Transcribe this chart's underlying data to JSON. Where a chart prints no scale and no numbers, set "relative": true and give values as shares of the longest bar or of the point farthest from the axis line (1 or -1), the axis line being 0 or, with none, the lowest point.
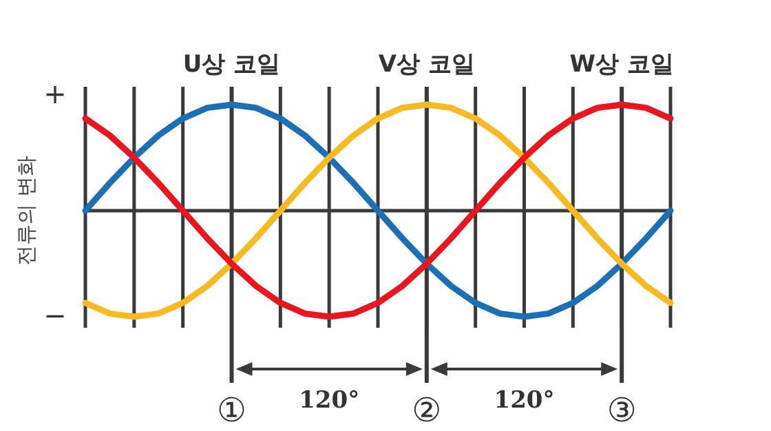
{
  "chart_data": {
    "type": "line",
    "relative": true,
    "ylabel": "전류의 변화",
    "categories": [
      null,
      null,
      null,
      null,
      null,
      null,
      null,
      null,
      null,
      null,
      null,
      null,
      null,
      null,
      null,
      null,
      null,
      null,
      null,
      null,
      null,
      null,
      null,
      null,
      null
    ],
    "grid": "x",
    "legend": false,
    "marker": "none",
    "line_style": "solid",
    "series": [
      {
        "name": "U상 코일",
        "color": "#1a6fb5",
        "values": [
          0,
          0.26,
          0.5,
          0.71,
          0.87,
          0.97,
          1,
          0.97,
          0.87,
          0.71,
          0.5,
          0.26,
          0,
          -0.26,
          -0.5,
          -0.71,
          -0.87,
          -0.97,
          -1,
          -0.97,
          -0.87,
          -0.71,
          -0.5,
          -0.26,
          0
        ]
      },
      {
        "name": "V상 코일",
        "color": "#f7b924",
        "values": [
          -0.87,
          -0.97,
          -1,
          -0.97,
          -0.87,
          -0.71,
          -0.5,
          -0.26,
          0,
          0.26,
          0.5,
          0.71,
          0.87,
          0.97,
          1,
          0.97,
          0.87,
          0.71,
          0.5,
          0.26,
          0,
          -0.26,
          -0.5,
          -0.71,
          -0.87
        ]
      },
      {
        "name": "W상 코일",
        "color": "#e8161e",
        "values": [
          0.87,
          0.71,
          0.5,
          0.26,
          0,
          -0.26,
          -0.5,
          -0.71,
          -0.87,
          -0.97,
          -1,
          -0.97,
          -0.87,
          -0.71,
          -0.5,
          -0.26,
          0,
          0.26,
          0.5,
          0.71,
          0.87,
          0.97,
          1,
          0.97,
          0.87
        ]
      }
    ],
    "annotations": [
      "+",
      "−",
      "①",
      "②",
      "③",
      "120°",
      "120°"
    ]
  }
}
